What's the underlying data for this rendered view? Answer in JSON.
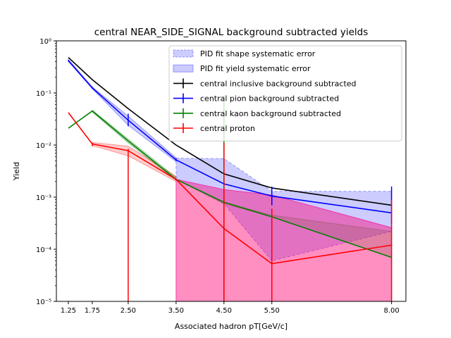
{
  "chart_data": {
    "type": "line",
    "title": "central NEAR_SIDE_SIGNAL background subtracted yields",
    "xlabel": "Associated hadron pT[GeV/c]",
    "ylabel": "Yield",
    "yscale": "log",
    "xlim": [
      1.0,
      8.3
    ],
    "ylim": [
      1e-05,
      1.0
    ],
    "xticks": [
      1.25,
      1.75,
      2.5,
      3.5,
      4.5,
      5.5,
      8.0
    ],
    "xtick_labels": [
      "1.25",
      "1.75",
      "2.50",
      "3.50",
      "4.50",
      "5.50",
      "8.00"
    ],
    "yticks": [
      1e-05,
      0.0001,
      0.001,
      0.01,
      0.1,
      1.0
    ],
    "ytick_labels": [
      "10⁻⁵",
      "10⁻⁴",
      "10⁻³",
      "10⁻²",
      "10⁻¹",
      "10⁰"
    ],
    "legend_position": "top-right",
    "legend": [
      {
        "label": "PID fit shape systematic error",
        "kind": "patch",
        "color": "#0000ff",
        "alpha": 0.2,
        "dashed": true
      },
      {
        "label": "PID fit yield systematic error",
        "kind": "patch",
        "color": "#0000ff",
        "alpha": 0.2,
        "dashed": false
      },
      {
        "label": "central inclusive background subtracted",
        "kind": "line",
        "color": "#000000"
      },
      {
        "label": "central pion background subtracted",
        "kind": "line",
        "color": "#0000ff"
      },
      {
        "label": "central kaon background subtracted",
        "kind": "line",
        "color": "#008000"
      },
      {
        "label": "central proton",
        "kind": "line",
        "color": "#ff0000"
      }
    ],
    "x": [
      1.25,
      1.75,
      2.5,
      3.5,
      4.5,
      5.5,
      8.0
    ],
    "series": [
      {
        "name": "central inclusive background subtracted",
        "color": "#000000",
        "values": [
          0.48,
          0.18,
          0.05,
          0.01,
          0.0028,
          0.0015,
          0.0007
        ]
      },
      {
        "name": "central pion background subtracted",
        "color": "#0000ff",
        "values": [
          0.42,
          0.125,
          0.03,
          0.0052,
          0.0018,
          0.00105,
          0.0005
        ],
        "err_low": [
          0.41,
          0.12,
          0.023,
          0.005,
          0.0018,
          0.0007,
          0.0003
        ],
        "err_high": [
          0.43,
          0.13,
          0.04,
          0.0055,
          0.0018,
          0.0016,
          0.0016
        ]
      },
      {
        "name": "central kaon background subtracted",
        "color": "#008000",
        "values": [
          0.021,
          0.045,
          0.012,
          0.0022,
          0.0008,
          0.00042,
          7e-05
        ],
        "err_low": [
          0.021,
          0.045,
          0.012,
          0.0022,
          1e-05,
          0.00042,
          7e-05
        ],
        "err_high": [
          0.021,
          0.045,
          0.012,
          0.0022,
          0.09,
          0.00042,
          7e-05
        ]
      },
      {
        "name": "central proton",
        "color": "#ff0000",
        "values": [
          0.042,
          0.0105,
          0.0078,
          0.0022,
          0.00025,
          5.3e-05,
          0.00012
        ],
        "err_low": [
          0.042,
          0.0095,
          1e-05,
          0.0022,
          1e-05,
          1e-05,
          1e-05
        ],
        "err_high": [
          0.042,
          0.011,
          0.0085,
          0.0022,
          0.011,
          0.0006,
          0.0009
        ]
      }
    ],
    "bands": [
      {
        "color": "#0000ff",
        "alpha": 0.2,
        "x": [
          1.25,
          1.75,
          2.5,
          3.5
        ],
        "low": [
          0.4,
          0.12,
          0.024,
          0.0048
        ],
        "high": [
          0.44,
          0.13,
          0.036,
          0.0057
        ]
      },
      {
        "color": "#008000",
        "alpha": 0.2,
        "x": [
          1.75,
          2.5,
          3.5
        ],
        "low": [
          0.043,
          0.011,
          0.0021
        ],
        "high": [
          0.047,
          0.013,
          0.0024
        ]
      },
      {
        "color": "#ff0000",
        "alpha": 0.2,
        "x": [
          1.75,
          2.5,
          3.5
        ],
        "low": [
          0.0098,
          0.0062,
          0.002
        ],
        "high": [
          0.0112,
          0.0095,
          0.0025
        ]
      },
      {
        "color": "#0000ff",
        "alpha": 0.2,
        "dashed": true,
        "x": [
          3.5,
          4.5,
          5.5,
          8.0
        ],
        "low": [
          0.0022,
          0.00075,
          6e-05,
          0.00022
        ],
        "high": [
          0.0056,
          0.0055,
          0.0013,
          0.0013
        ]
      },
      {
        "color": "#008000",
        "alpha": 0.2,
        "x": [
          3.5,
          4.5,
          5.5,
          8.0
        ],
        "low": [
          0.0022,
          0.00075,
          0.00042,
          7e-05
        ],
        "high": [
          0.0022,
          0.0008,
          0.00045,
          0.00022
        ]
      },
      {
        "color": "#ff0000",
        "alpha": 0.3,
        "x": [
          3.5,
          4.5,
          5.5,
          8.0
        ],
        "low": [
          1e-05,
          1e-05,
          1e-05,
          1e-05
        ],
        "high": [
          0.0022,
          0.0014,
          0.0011,
          0.00026
        ]
      },
      {
        "color": "#ff00ff",
        "alpha": 0.2,
        "x": [
          3.5,
          4.5,
          5.5,
          8.0
        ],
        "low": [
          1e-05,
          1e-05,
          1e-05,
          1e-05
        ],
        "high": [
          0.0022,
          0.0014,
          0.0011,
          0.00026
        ]
      }
    ]
  }
}
